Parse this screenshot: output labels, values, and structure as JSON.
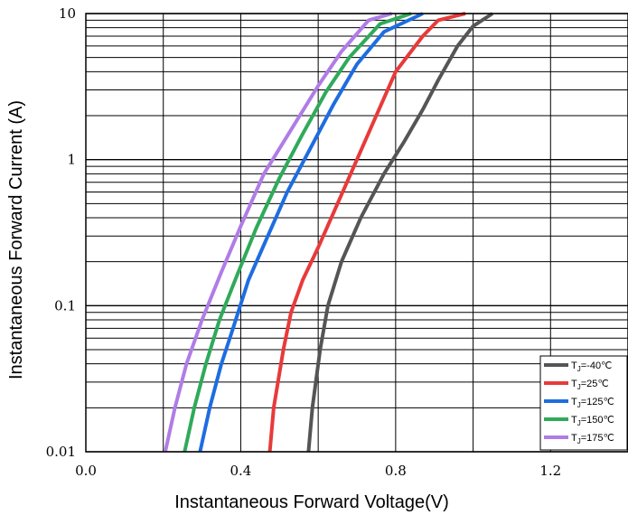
{
  "chart_data": {
    "type": "line",
    "xlabel": "Instantaneous Forward Voltage(V)",
    "ylabel": "Instantaneous Forward Current (A)",
    "xlim": [
      0,
      1.4
    ],
    "ylim": [
      0.01,
      10
    ],
    "yscale": "log",
    "grid": true,
    "legend_position": "bottom-right",
    "x_ticks": [
      {
        "value": 0.0,
        "label": "0.0"
      },
      {
        "value": 0.4,
        "label": "0.4"
      },
      {
        "value": 0.8,
        "label": "0.8"
      },
      {
        "value": 1.2,
        "label": "1.2"
      }
    ],
    "y_ticks": [
      {
        "value": 0.01,
        "label": "0.01"
      },
      {
        "value": 0.1,
        "label": "0.1"
      },
      {
        "value": 1,
        "label": "1"
      },
      {
        "value": 10,
        "label": "10"
      }
    ],
    "series": [
      {
        "name": "T",
        "sub": "J",
        "suffix": "=-40℃",
        "color": "#555555",
        "points": [
          [
            0.575,
            0.01
          ],
          [
            0.585,
            0.02
          ],
          [
            0.605,
            0.05
          ],
          [
            0.625,
            0.1
          ],
          [
            0.66,
            0.2
          ],
          [
            0.71,
            0.4
          ],
          [
            0.77,
            0.8
          ],
          [
            0.82,
            1.3
          ],
          [
            0.87,
            2.2
          ],
          [
            0.91,
            3.5
          ],
          [
            0.96,
            6
          ],
          [
            1.0,
            8.2
          ],
          [
            1.05,
            10
          ]
        ]
      },
      {
        "name": "T",
        "sub": "J",
        "suffix": "=25℃",
        "color": "#e83a3a",
        "points": [
          [
            0.475,
            0.01
          ],
          [
            0.485,
            0.02
          ],
          [
            0.51,
            0.05
          ],
          [
            0.53,
            0.09
          ],
          [
            0.56,
            0.15
          ],
          [
            0.6,
            0.25
          ],
          [
            0.65,
            0.5
          ],
          [
            0.7,
            1
          ],
          [
            0.75,
            2
          ],
          [
            0.8,
            4
          ],
          [
            0.87,
            7
          ],
          [
            0.91,
            9
          ],
          [
            0.98,
            10
          ]
        ]
      },
      {
        "name": "T",
        "sub": "J",
        "suffix": "=125℃",
        "color": "#1e6de0",
        "points": [
          [
            0.295,
            0.01
          ],
          [
            0.32,
            0.02
          ],
          [
            0.35,
            0.04
          ],
          [
            0.38,
            0.07
          ],
          [
            0.42,
            0.15
          ],
          [
            0.47,
            0.3
          ],
          [
            0.52,
            0.6
          ],
          [
            0.58,
            1.2
          ],
          [
            0.64,
            2.4
          ],
          [
            0.7,
            4.5
          ],
          [
            0.77,
            7.5
          ],
          [
            0.87,
            10
          ]
        ]
      },
      {
        "name": "T",
        "sub": "J",
        "suffix": "=150℃",
        "color": "#2faa5a",
        "points": [
          [
            0.255,
            0.01
          ],
          [
            0.28,
            0.02
          ],
          [
            0.31,
            0.04
          ],
          [
            0.345,
            0.08
          ],
          [
            0.39,
            0.16
          ],
          [
            0.44,
            0.34
          ],
          [
            0.5,
            0.75
          ],
          [
            0.56,
            1.5
          ],
          [
            0.62,
            2.9
          ],
          [
            0.68,
            5
          ],
          [
            0.76,
            8.5
          ],
          [
            0.84,
            10
          ]
        ]
      },
      {
        "name": "T",
        "sub": "J",
        "suffix": "=175℃",
        "color": "#b07ce6",
        "points": [
          [
            0.205,
            0.01
          ],
          [
            0.23,
            0.02
          ],
          [
            0.26,
            0.04
          ],
          [
            0.3,
            0.08
          ],
          [
            0.35,
            0.17
          ],
          [
            0.4,
            0.35
          ],
          [
            0.46,
            0.8
          ],
          [
            0.53,
            1.6
          ],
          [
            0.6,
            3.2
          ],
          [
            0.66,
            5.5
          ],
          [
            0.73,
            9
          ],
          [
            0.79,
            10
          ]
        ]
      }
    ]
  }
}
